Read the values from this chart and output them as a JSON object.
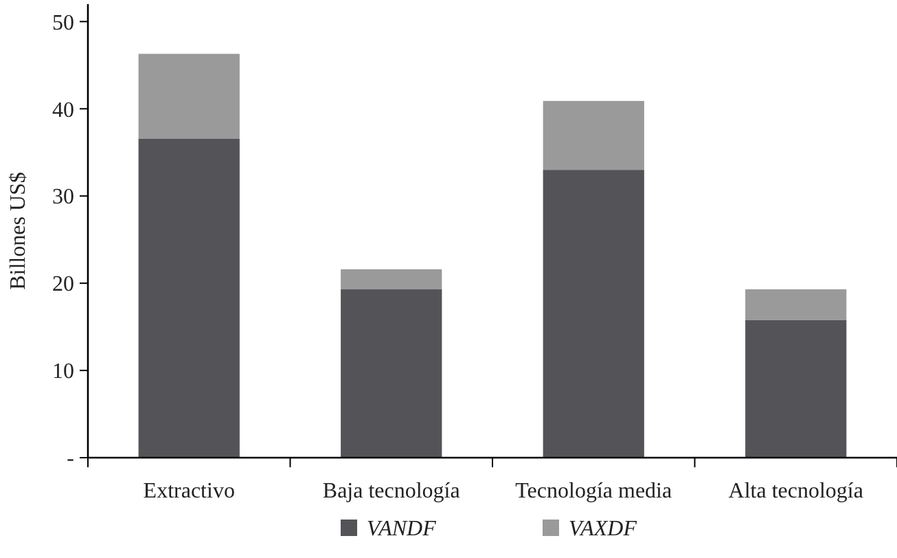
{
  "chart_data": {
    "type": "bar",
    "stacked": true,
    "ylabel": "Billones US$",
    "categories": [
      "Extractivo",
      "Baja tecnología",
      "Tecnología media",
      "Alta tecnología"
    ],
    "series": [
      {
        "name": "VANDF",
        "color": "#535358",
        "values": [
          36.6,
          19.3,
          33.0,
          15.8
        ]
      },
      {
        "name": "VAXDF",
        "color": "#9a9a9a",
        "values": [
          9.7,
          2.3,
          7.9,
          3.5
        ]
      }
    ],
    "ylim": [
      0,
      52
    ],
    "yticks": [
      {
        "value": 0,
        "label": "-"
      },
      10,
      20,
      30,
      40,
      50
    ],
    "grid": false,
    "legend": "bottom"
  }
}
